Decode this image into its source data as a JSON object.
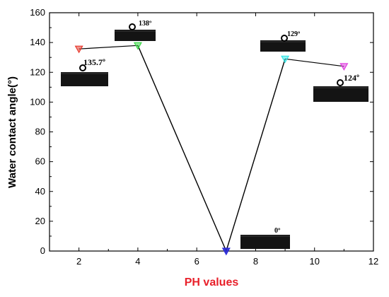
{
  "chart_data": {
    "type": "line",
    "xlabel": "PH values",
    "ylabel": "Water contact angle(°)",
    "xlim": [
      1,
      12
    ],
    "ylim": [
      0,
      160
    ],
    "x_ticks": [
      2,
      4,
      6,
      8,
      10,
      12
    ],
    "y_ticks": [
      0,
      20,
      40,
      60,
      80,
      100,
      120,
      140,
      160
    ],
    "line_x": [
      4,
      7,
      9
    ],
    "line_y": [
      138,
      0,
      129
    ],
    "points": [
      {
        "x": 2,
        "y": 135.7,
        "color": "#e83a2e"
      },
      {
        "x": 4,
        "y": 138,
        "color": "#3ed94a"
      },
      {
        "x": 7,
        "y": 0,
        "color": "#2a2ad8"
      },
      {
        "x": 9,
        "y": 129,
        "color": "#33e6e6"
      },
      {
        "x": 11,
        "y": 124,
        "color": "#e040e0"
      }
    ],
    "annotations": [
      {
        "text": "135.7º",
        "for_x": 2
      },
      {
        "text": "138º",
        "for_x": 4
      },
      {
        "text": "0º",
        "for_x": 7
      },
      {
        "text": "129º",
        "for_x": 9
      },
      {
        "text": "124º",
        "for_x": 11
      }
    ],
    "colors": {
      "xlabel": "#e8202a",
      "ylabel": "#000000",
      "line": "#000000",
      "axis": "#000000"
    }
  }
}
